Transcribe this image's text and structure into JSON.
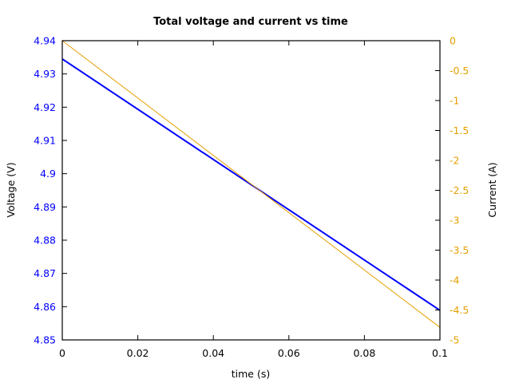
{
  "chart_data": {
    "type": "line",
    "title": "Total voltage and current vs time",
    "xlabel": "time (s)",
    "ylabel": "Voltage (V)",
    "y2label": "Current (A)",
    "xlim": [
      0,
      0.1
    ],
    "ylim": [
      4.85,
      4.94
    ],
    "y2lim": [
      -5,
      0
    ],
    "xticks": [
      "0",
      "0.02",
      "0.04",
      "0.06",
      "0.08",
      "0.1"
    ],
    "yticks": [
      "4.85",
      "4.86",
      "4.87",
      "4.88",
      "4.89",
      "4.9",
      "4.91",
      "4.92",
      "4.93",
      "4.94"
    ],
    "y2ticks": [
      "0",
      "-0.5",
      "-1",
      "-1.5",
      "-2",
      "-2.5",
      "-3",
      "-3.5",
      "-4",
      "-4.5",
      "-5"
    ],
    "grid": false,
    "legend": "none",
    "series": [
      {
        "name": "Voltage",
        "axis": "left",
        "color": "#0000ff",
        "x": [
          0,
          0.1
        ],
        "values": [
          4.9345,
          4.8589
        ]
      },
      {
        "name": "Current",
        "axis": "right",
        "color": "#e69f00",
        "x": [
          0,
          0.1
        ],
        "values": [
          0,
          -4.79
        ]
      }
    ]
  },
  "colors": {
    "left_axis": "#0000ff",
    "right_axis": "#e69f00",
    "frame": "#000000"
  }
}
